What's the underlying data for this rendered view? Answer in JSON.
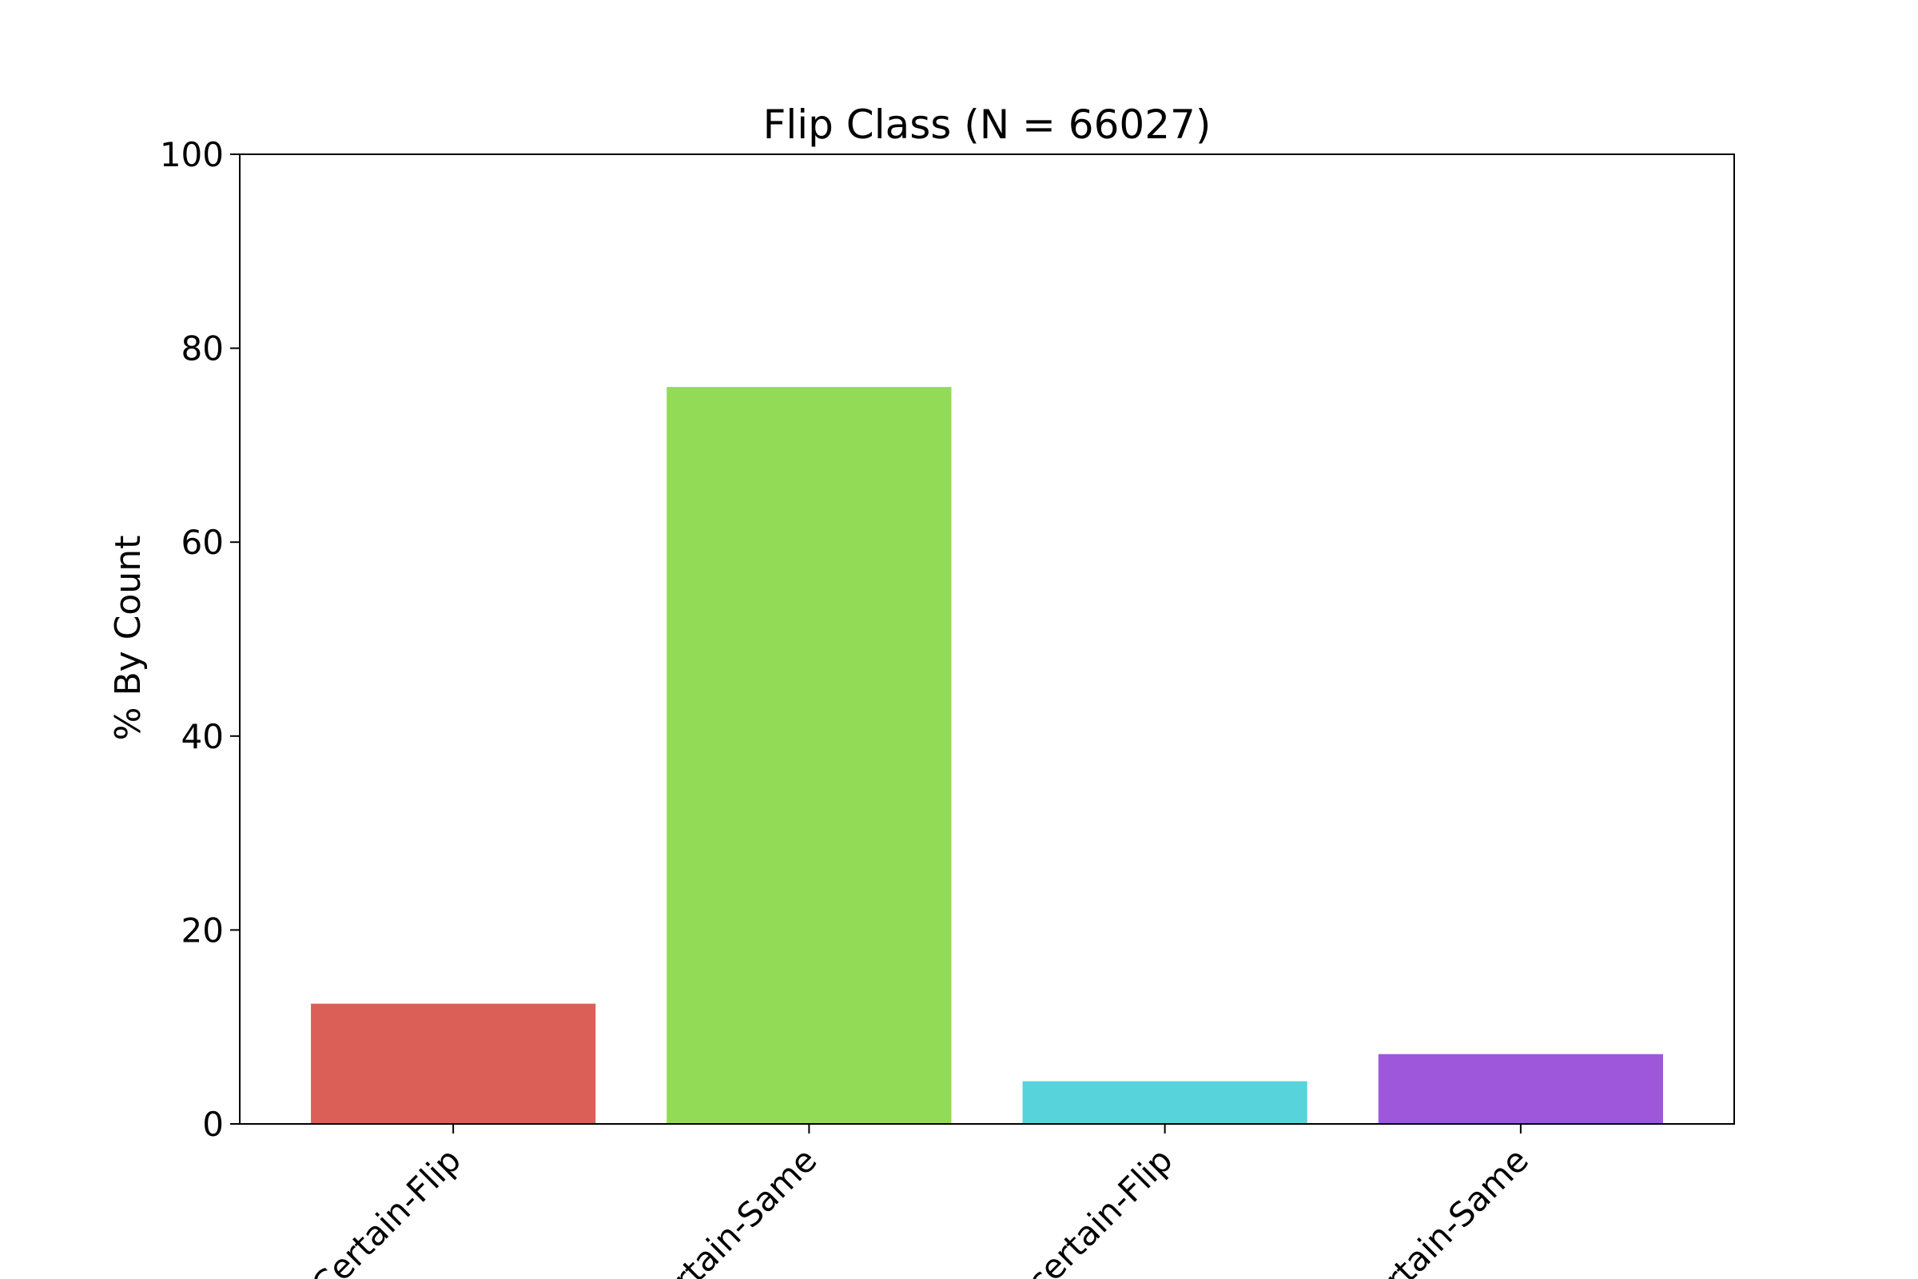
{
  "chart_data": {
    "type": "bar",
    "title": "Flip Class (N = 66027)",
    "xlabel": "",
    "ylabel": "% By Count",
    "ylim": [
      0,
      100
    ],
    "yticks": [
      0,
      20,
      40,
      60,
      80,
      100
    ],
    "categories": [
      "Certain-Flip",
      "Certain-Same",
      "Uncertain-Flip",
      "Uncertain-Same"
    ],
    "tick_labels_visible": [
      "Certain-Flip",
      "rtain-Same",
      "certain-Flip",
      "rtain-Same"
    ],
    "values": [
      12.4,
      76.0,
      4.4,
      7.2
    ],
    "colors": [
      "#db5f57",
      "#91db57",
      "#57d3db",
      "#9e57db"
    ],
    "grid": false,
    "legend": "none"
  }
}
